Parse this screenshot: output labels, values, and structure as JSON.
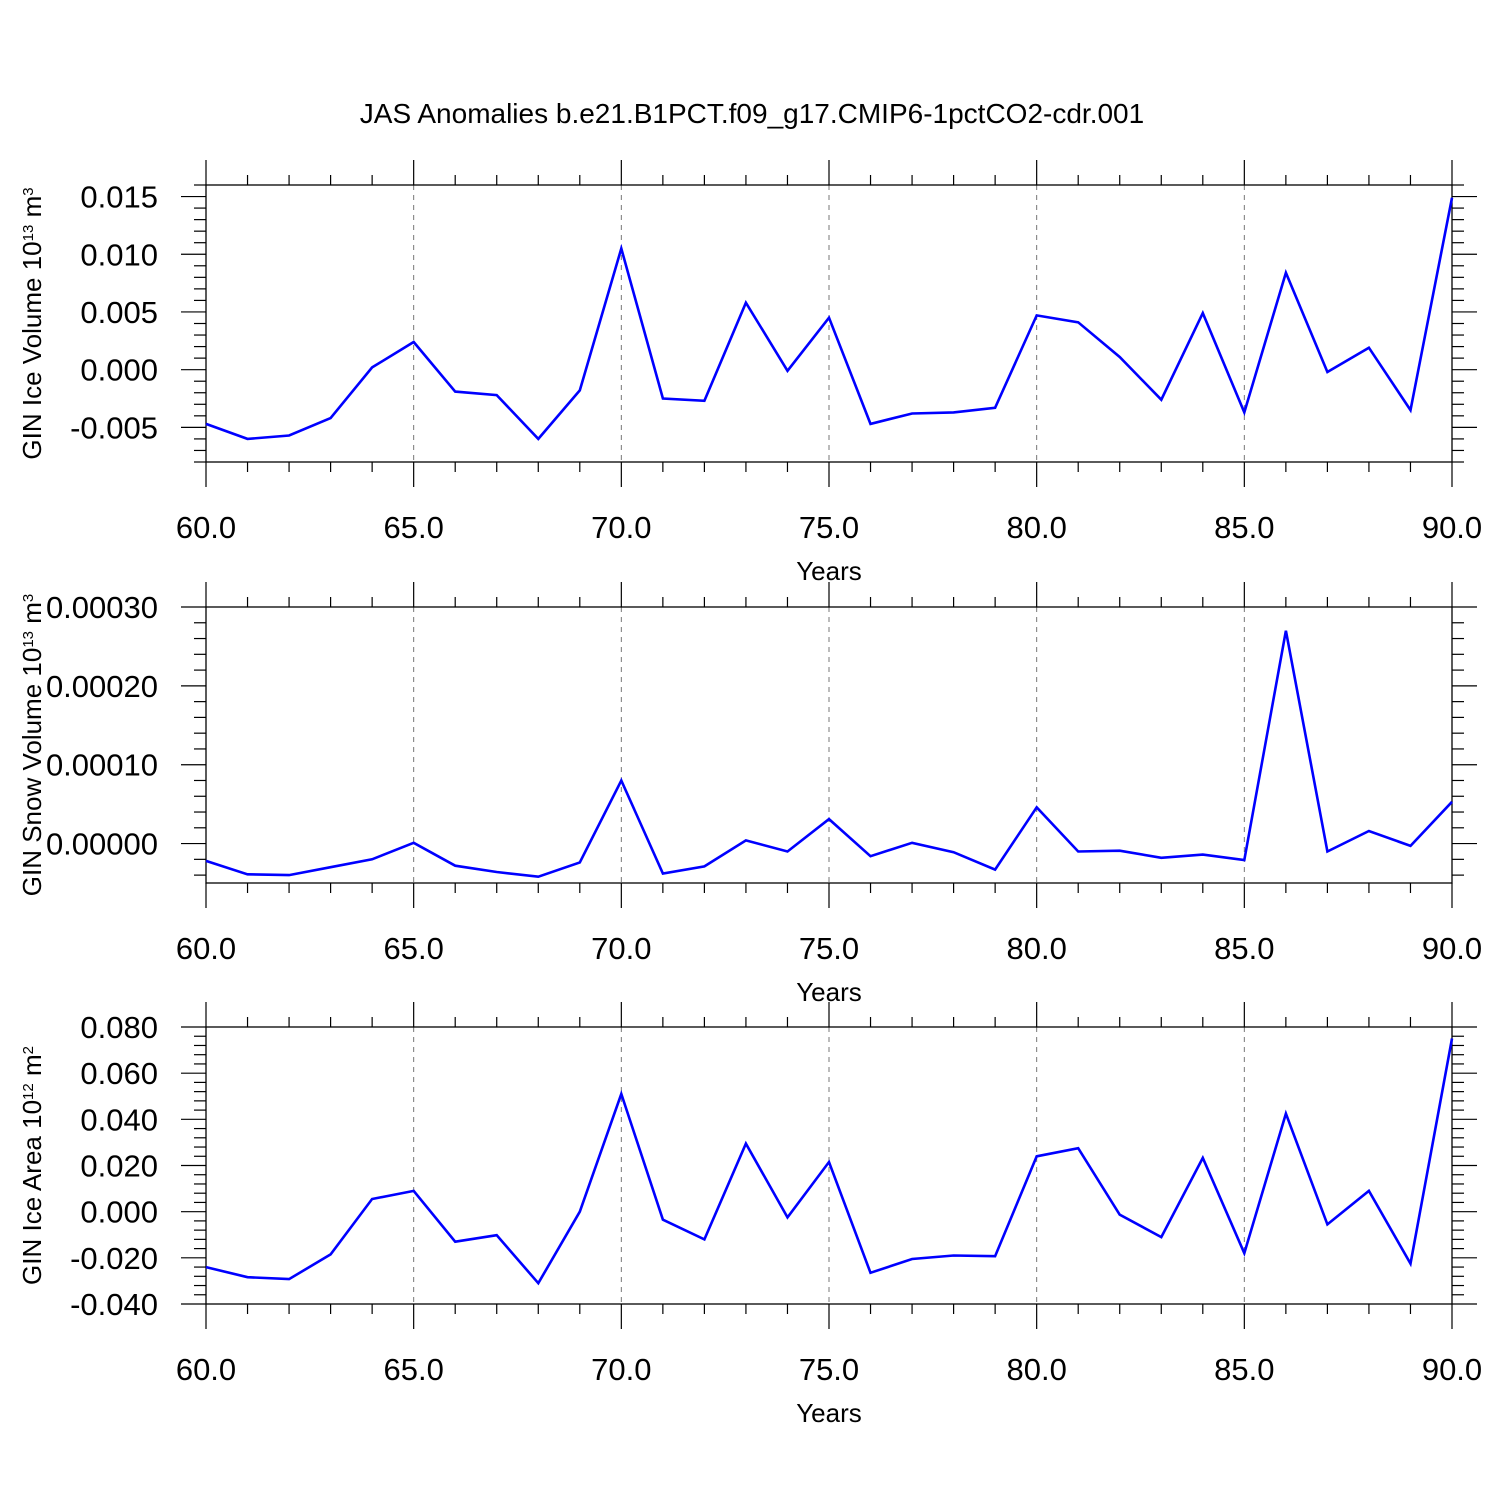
{
  "title": "JAS Anomalies b.e21.B1PCT.f09_g17.CMIP6-1pctCO2-cdr.001",
  "series_color": "#0000ff",
  "chart_data": [
    {
      "type": "line",
      "title": "",
      "xlabel": "Years",
      "ylabel": {
        "text": "GIN Ice Volume 10",
        "sup": "13",
        "unit": " m",
        "unit_sup": "3"
      },
      "xlim": [
        60,
        90
      ],
      "ylim": [
        -0.008,
        0.016
      ],
      "xticks": [
        60,
        65,
        70,
        75,
        80,
        85,
        90
      ],
      "xtick_labels": [
        "60.0",
        "65.0",
        "70.0",
        "75.0",
        "80.0",
        "85.0",
        "90.0"
      ],
      "yticks": [
        -0.005,
        0.0,
        0.005,
        0.01,
        0.015
      ],
      "ytick_labels": [
        "-0.005",
        "0.000",
        "0.005",
        "0.010",
        "0.015"
      ],
      "yminor_step": 0.001,
      "grid": "vertical dashed at major x ticks",
      "x": [
        60,
        61,
        62,
        63,
        64,
        65,
        66,
        67,
        68,
        69,
        70,
        71,
        72,
        73,
        74,
        75,
        76,
        77,
        78,
        79,
        80,
        81,
        82,
        83,
        84,
        85,
        86,
        87,
        88,
        89,
        90
      ],
      "series": [
        {
          "values": [
            -0.0047,
            -0.006,
            -0.0057,
            -0.0042,
            0.0002,
            0.0024,
            -0.0019,
            -0.0022,
            -0.006,
            -0.0018,
            0.0105,
            -0.0025,
            -0.0027,
            0.0058,
            -0.0001,
            0.0045,
            -0.0047,
            -0.0038,
            -0.0037,
            -0.0033,
            0.0047,
            0.0041,
            0.0011,
            -0.0026,
            0.0049,
            -0.0037,
            0.0084,
            -0.0002,
            0.0019,
            -0.0035,
            0.0149
          ]
        }
      ]
    },
    {
      "type": "line",
      "title": "",
      "xlabel": "Years",
      "ylabel": {
        "text": "GIN Snow Volume 10",
        "sup": "13",
        "unit": " m",
        "unit_sup": "3"
      },
      "xlim": [
        60,
        90
      ],
      "ylim": [
        -5e-05,
        0.0003
      ],
      "xticks": [
        60,
        65,
        70,
        75,
        80,
        85,
        90
      ],
      "xtick_labels": [
        "60.0",
        "65.0",
        "70.0",
        "75.0",
        "80.0",
        "85.0",
        "90.0"
      ],
      "yticks": [
        0.0,
        0.0001,
        0.0002,
        0.0003
      ],
      "ytick_labels": [
        "0.00000",
        "0.00010",
        "0.00020",
        "0.00030"
      ],
      "yminor_step": 2e-05,
      "grid": "vertical dashed at major x ticks",
      "x": [
        60,
        61,
        62,
        63,
        64,
        65,
        66,
        67,
        68,
        69,
        70,
        71,
        72,
        73,
        74,
        75,
        76,
        77,
        78,
        79,
        80,
        81,
        82,
        83,
        84,
        85,
        86,
        87,
        88,
        89,
        90
      ],
      "series": [
        {
          "values": [
            -2.2e-05,
            -3.9e-05,
            -4e-05,
            -3e-05,
            -2e-05,
            1e-06,
            -2.8e-05,
            -3.6e-05,
            -4.2e-05,
            -2.4e-05,
            8e-05,
            -3.8e-05,
            -2.9e-05,
            4e-06,
            -1e-05,
            3.1e-05,
            -1.6e-05,
            1e-06,
            -1.1e-05,
            -3.3e-05,
            4.6e-05,
            -1e-05,
            -9e-06,
            -1.8e-05,
            -1.4e-05,
            -2.1e-05,
            0.00027,
            -1e-05,
            1.6e-05,
            -3e-06,
            5.3e-05
          ]
        }
      ]
    },
    {
      "type": "line",
      "title": "",
      "xlabel": "Years",
      "ylabel": {
        "text": "GIN Ice Area 10",
        "sup": "12",
        "unit": " m",
        "unit_sup": "2"
      },
      "xlim": [
        60,
        90
      ],
      "ylim": [
        -0.04,
        0.08
      ],
      "xticks": [
        60,
        65,
        70,
        75,
        80,
        85,
        90
      ],
      "xtick_labels": [
        "60.0",
        "65.0",
        "70.0",
        "75.0",
        "80.0",
        "85.0",
        "90.0"
      ],
      "yticks": [
        -0.04,
        -0.02,
        0.0,
        0.02,
        0.04,
        0.06,
        0.08
      ],
      "ytick_labels": [
        "-0.040",
        "-0.020",
        "0.000",
        "0.020",
        "0.040",
        "0.060",
        "0.080"
      ],
      "yminor_step": 0.004,
      "grid": "vertical dashed at major x ticks",
      "x": [
        60,
        61,
        62,
        63,
        64,
        65,
        66,
        67,
        68,
        69,
        70,
        71,
        72,
        73,
        74,
        75,
        76,
        77,
        78,
        79,
        80,
        81,
        82,
        83,
        84,
        85,
        86,
        87,
        88,
        89,
        90
      ],
      "series": [
        {
          "values": [
            -0.024,
            -0.0284,
            -0.0292,
            -0.0185,
            0.0055,
            0.009,
            -0.013,
            -0.0102,
            -0.031,
            0.0,
            0.051,
            -0.0035,
            -0.012,
            0.0295,
            -0.0025,
            0.0215,
            -0.0265,
            -0.0205,
            -0.019,
            -0.0193,
            0.024,
            0.0275,
            -0.0013,
            -0.011,
            0.0233,
            -0.018,
            0.0425,
            -0.0055,
            0.009,
            -0.0225,
            0.075
          ]
        }
      ]
    }
  ]
}
